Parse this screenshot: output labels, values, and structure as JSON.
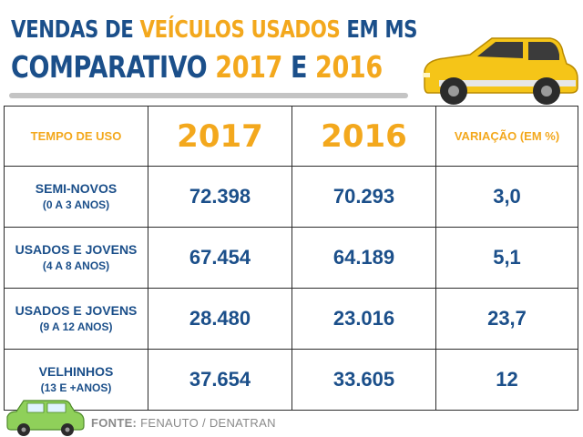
{
  "title": {
    "line1_prefix": "VENDAS DE ",
    "line1_highlight": "VEÍCULOS USADOS",
    "line1_suffix": " EM MS",
    "line2_prefix": "COMPARATIVO ",
    "line2_year1": "2017",
    "line2_and": " E ",
    "line2_year2": "2016"
  },
  "colors": {
    "primary_blue": "#1b4f8a",
    "accent_orange": "#f3a81d",
    "car_yellow": "#f5c518",
    "car_green": "#8fd05a"
  },
  "icons": [
    "yellow-car-icon",
    "green-car-icon"
  ],
  "chart_data": {
    "type": "table",
    "title": "VENDAS DE VEÍCULOS USADOS EM MS — COMPARATIVO 2017 E 2016",
    "headers": [
      "TEMPO DE USO",
      "2017",
      "2016",
      "VARIAÇÃO (EM %)"
    ],
    "rows": [
      {
        "category": "SEMI-NOVOS",
        "range": "(0 A 3 ANOS)",
        "v2017": "72.398",
        "v2016": "70.293",
        "variation": "3,0"
      },
      {
        "category": "USADOS E JOVENS",
        "range": "(4 A 8 ANOS)",
        "v2017": "67.454",
        "v2016": "64.189",
        "variation": "5,1"
      },
      {
        "category": "USADOS E JOVENS",
        "range": "(9 A 12 ANOS)",
        "v2017": "28.480",
        "v2016": "23.016",
        "variation": "23,7"
      },
      {
        "category": "VELHINHOS",
        "range": "(13 E +ANOS)",
        "v2017": "37.654",
        "v2016": "33.605",
        "variation": "12"
      }
    ]
  },
  "source": {
    "label": "FONTE:",
    "text": "FENAUTO / DENATRAN"
  }
}
